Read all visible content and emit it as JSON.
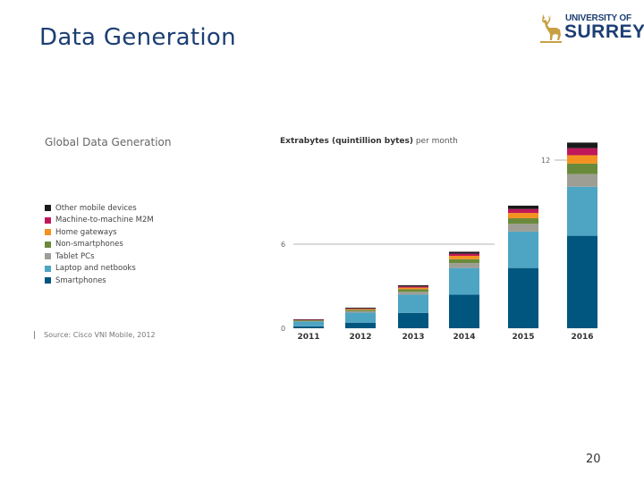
{
  "slide": {
    "title": "Data Generation",
    "page_number": "20"
  },
  "logo": {
    "line1": "UNIVERSITY OF",
    "line2": "SURREY"
  },
  "colors": {
    "title": "#1c3e73",
    "logo_gold": "#c8a042"
  },
  "chart_data": {
    "type": "bar",
    "stacked": true,
    "title": "Global Data Generation",
    "ylabel_bold": "Extrabytes (quintillion bytes)",
    "ylabel_rest": " per month",
    "source": "Source: Cisco VNI Mobile, 2012",
    "categories": [
      "2011",
      "2012",
      "2013",
      "2014",
      "2015",
      "2016"
    ],
    "ylim": [
      0,
      12
    ],
    "yticks": [
      0,
      6,
      12
    ],
    "series": [
      {
        "name": "Smartphones",
        "color": "#00567e",
        "values": [
          0.14,
          0.4,
          1.1,
          2.4,
          4.3,
          6.6
        ]
      },
      {
        "name": "Laptop and netbooks",
        "color": "#4ea5c3",
        "values": [
          0.34,
          0.72,
          1.3,
          1.9,
          2.6,
          3.5
        ]
      },
      {
        "name": "Tablet PCs",
        "color": "#9e9e95",
        "values": [
          0.04,
          0.1,
          0.2,
          0.35,
          0.55,
          0.9
        ]
      },
      {
        "name": "Non-smartphones",
        "color": "#6a8a3b",
        "values": [
          0.06,
          0.1,
          0.18,
          0.28,
          0.4,
          0.75
        ]
      },
      {
        "name": "Home gateways",
        "color": "#f39221",
        "values": [
          0.02,
          0.06,
          0.12,
          0.24,
          0.38,
          0.6
        ]
      },
      {
        "name": "Machine-to-machine M2M",
        "color": "#c0175a",
        "values": [
          0.01,
          0.03,
          0.08,
          0.15,
          0.28,
          0.5
        ]
      },
      {
        "name": "Other mobile devices",
        "color": "#1a1a1a",
        "values": [
          0.03,
          0.06,
          0.09,
          0.14,
          0.24,
          0.4
        ]
      }
    ]
  }
}
